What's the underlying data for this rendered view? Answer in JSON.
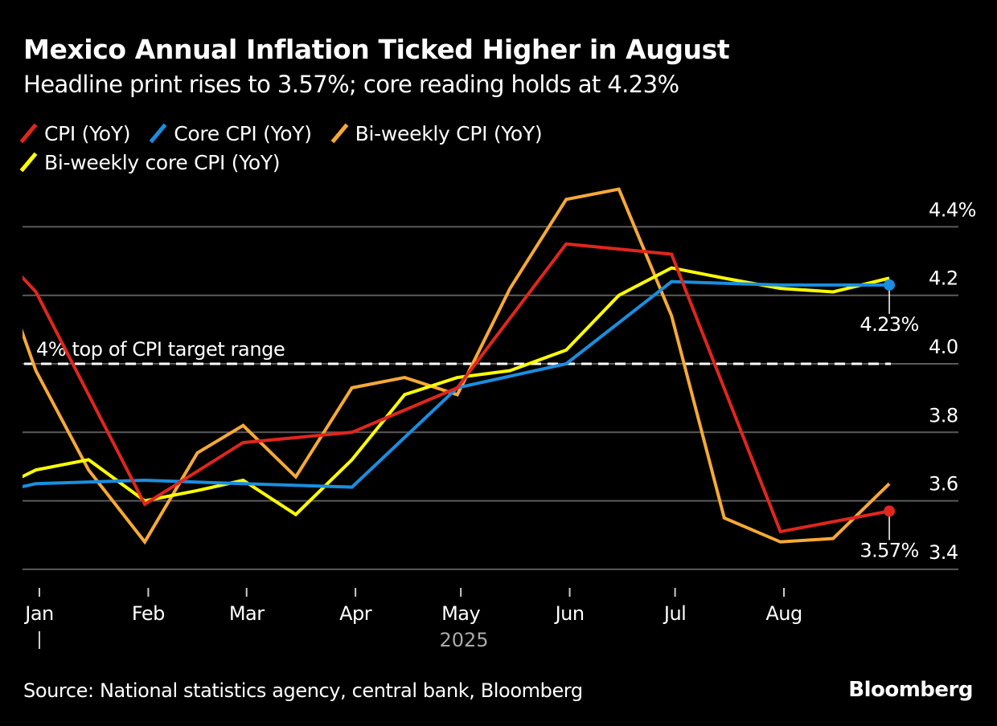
{
  "header": {
    "title": "Mexico Annual Inflation Ticked Higher in August",
    "subtitle": "Headline print rises to 3.57%; core reading holds at 4.23%"
  },
  "footer": {
    "source": "Source: National statistics agency, central bank, Bloomberg",
    "brand": "Bloomberg"
  },
  "chart_data": {
    "type": "line",
    "title": "Mexico Annual Inflation Ticked Higher in August",
    "subtitle": "Headline print rises to 3.57%; core reading holds at 4.23%",
    "xlabel": "",
    "ylabel": "",
    "x_type": "date",
    "xlim": [
      "2024-12-27",
      "2025-09-01"
    ],
    "x_ticks": [
      "Jan",
      "Feb",
      "Mar",
      "Apr",
      "May",
      "Jun",
      "Jul",
      "Aug"
    ],
    "x_tick_dates": [
      "2025-01-01",
      "2025-02-01",
      "2025-03-01",
      "2025-04-01",
      "2025-05-01",
      "2025-06-01",
      "2025-07-01",
      "2025-08-01"
    ],
    "x_year_label": "2025",
    "ylim": [
      3.35,
      4.55
    ],
    "y_ticks": [
      3.4,
      3.6,
      3.8,
      4.0,
      4.2,
      4.4
    ],
    "y_tick_labels": [
      "3.4",
      "3.6",
      "3.8",
      "4.0",
      "4.2",
      "4.4%"
    ],
    "y_axis_side": "right",
    "grid": true,
    "legend_position": "top-left",
    "reference_line": {
      "value": 4.0,
      "label": "4% top of CPI target range",
      "style": "dashed",
      "color": "#ffffff"
    },
    "series": [
      {
        "name": "CPI (YoY)",
        "key": "cpi",
        "color": "#e0261d",
        "x": [
          "2024-11-30",
          "2024-12-31",
          "2025-01-31",
          "2025-02-28",
          "2025-03-31",
          "2025-04-30",
          "2025-05-31",
          "2025-06-30",
          "2025-07-31",
          "2025-08-31"
        ],
        "values": [
          4.55,
          4.21,
          3.59,
          3.77,
          3.8,
          3.93,
          4.35,
          4.32,
          3.51,
          3.57
        ],
        "end_label": "3.57%"
      },
      {
        "name": "Core CPI (YoY)",
        "key": "core",
        "color": "#1a8ee0",
        "x": [
          "2024-11-30",
          "2024-12-31",
          "2025-01-31",
          "2025-02-28",
          "2025-03-31",
          "2025-04-30",
          "2025-05-31",
          "2025-06-30",
          "2025-07-31",
          "2025-08-31"
        ],
        "values": [
          3.58,
          3.65,
          3.66,
          3.65,
          3.64,
          3.93,
          4.0,
          4.24,
          4.23,
          4.23
        ],
        "end_label": "4.23%"
      },
      {
        "name": "Bi-weekly CPI (YoY)",
        "key": "biweekly",
        "color": "#f6a936",
        "x": [
          "2024-12-15",
          "2024-12-31",
          "2025-01-15",
          "2025-01-31",
          "2025-02-15",
          "2025-02-28",
          "2025-03-15",
          "2025-03-31",
          "2025-04-15",
          "2025-04-30",
          "2025-05-15",
          "2025-05-31",
          "2025-06-15",
          "2025-06-30",
          "2025-07-15",
          "2025-07-31",
          "2025-08-15",
          "2025-08-31"
        ],
        "values": [
          4.44,
          3.98,
          3.69,
          3.48,
          3.74,
          3.82,
          3.67,
          3.93,
          3.96,
          3.91,
          4.22,
          4.48,
          4.51,
          4.14,
          3.55,
          3.48,
          3.49,
          3.65
        ]
      },
      {
        "name": "Bi-weekly core CPI (YoY)",
        "key": "biweekly_core",
        "color": "#ffff00",
        "x": [
          "2024-12-15",
          "2024-12-31",
          "2025-01-15",
          "2025-01-31",
          "2025-02-15",
          "2025-02-28",
          "2025-03-15",
          "2025-03-31",
          "2025-04-15",
          "2025-04-30",
          "2025-05-15",
          "2025-05-31",
          "2025-06-15",
          "2025-06-30",
          "2025-07-15",
          "2025-07-31",
          "2025-08-15",
          "2025-08-31"
        ],
        "values": [
          3.61,
          3.69,
          3.72,
          3.6,
          3.63,
          3.66,
          3.56,
          3.72,
          3.91,
          3.96,
          3.98,
          4.04,
          4.2,
          4.28,
          4.25,
          4.22,
          4.21,
          4.25
        ]
      }
    ]
  }
}
